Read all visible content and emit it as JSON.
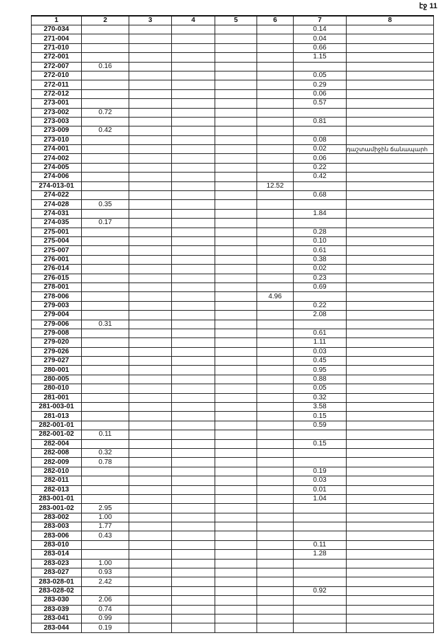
{
  "page_label": "էջ 11",
  "headers": [
    "1",
    "2",
    "3",
    "4",
    "5",
    "6",
    "7",
    "8"
  ],
  "rows": [
    [
      "270-034",
      "",
      "",
      "",
      "",
      "",
      "0.14",
      ""
    ],
    [
      "271-004",
      "",
      "",
      "",
      "",
      "",
      "0.04",
      ""
    ],
    [
      "271-010",
      "",
      "",
      "",
      "",
      "",
      "0.66",
      ""
    ],
    [
      "272-001",
      "",
      "",
      "",
      "",
      "",
      "1.15",
      ""
    ],
    [
      "272-007",
      "0.16",
      "",
      "",
      "",
      "",
      "",
      ""
    ],
    [
      "272-010",
      "",
      "",
      "",
      "",
      "",
      "0.05",
      ""
    ],
    [
      "272-011",
      "",
      "",
      "",
      "",
      "",
      "0.29",
      ""
    ],
    [
      "272-012",
      "",
      "",
      "",
      "",
      "",
      "0.06",
      ""
    ],
    [
      "273-001",
      "",
      "",
      "",
      "",
      "",
      "0.57",
      ""
    ],
    [
      "273-002",
      "0.72",
      "",
      "",
      "",
      "",
      "",
      ""
    ],
    [
      "273-003",
      "",
      "",
      "",
      "",
      "",
      "0.81",
      ""
    ],
    [
      "273-009",
      "0.42",
      "",
      "",
      "",
      "",
      "",
      ""
    ],
    [
      "273-010",
      "",
      "",
      "",
      "",
      "",
      "0.08",
      ""
    ],
    [
      "274-001",
      "",
      "",
      "",
      "",
      "",
      "0.02",
      "դաշտամիջին ճանապարհ"
    ],
    [
      "274-002",
      "",
      "",
      "",
      "",
      "",
      "0.06",
      ""
    ],
    [
      "274-005",
      "",
      "",
      "",
      "",
      "",
      "0.22",
      ""
    ],
    [
      "274-006",
      "",
      "",
      "",
      "",
      "",
      "0.42",
      ""
    ],
    [
      "274-013-01",
      "",
      "",
      "",
      "",
      "12.52",
      "",
      ""
    ],
    [
      "274-022",
      "",
      "",
      "",
      "",
      "",
      "0.68",
      ""
    ],
    [
      "274-028",
      "0.35",
      "",
      "",
      "",
      "",
      "",
      ""
    ],
    [
      "274-031",
      "",
      "",
      "",
      "",
      "",
      "1.84",
      ""
    ],
    [
      "274-035",
      "0.17",
      "",
      "",
      "",
      "",
      "",
      ""
    ],
    [
      "275-001",
      "",
      "",
      "",
      "",
      "",
      "0.28",
      ""
    ],
    [
      "275-004",
      "",
      "",
      "",
      "",
      "",
      "0.10",
      ""
    ],
    [
      "275-007",
      "",
      "",
      "",
      "",
      "",
      "0.61",
      ""
    ],
    [
      "276-001",
      "",
      "",
      "",
      "",
      "",
      "0.38",
      ""
    ],
    [
      "276-014",
      "",
      "",
      "",
      "",
      "",
      "0.02",
      ""
    ],
    [
      "276-015",
      "",
      "",
      "",
      "",
      "",
      "0.23",
      ""
    ],
    [
      "278-001",
      "",
      "",
      "",
      "",
      "",
      "0.69",
      ""
    ],
    [
      "278-006",
      "",
      "",
      "",
      "",
      "4.96",
      "",
      ""
    ],
    [
      "279-003",
      "",
      "",
      "",
      "",
      "",
      "0.22",
      ""
    ],
    [
      "279-004",
      "",
      "",
      "",
      "",
      "",
      "2.08",
      ""
    ],
    [
      "279-006",
      "0.31",
      "",
      "",
      "",
      "",
      "",
      ""
    ],
    [
      "279-008",
      "",
      "",
      "",
      "",
      "",
      "0.61",
      ""
    ],
    [
      "279-020",
      "",
      "",
      "",
      "",
      "",
      "1.11",
      ""
    ],
    [
      "279-026",
      "",
      "",
      "",
      "",
      "",
      "0.03",
      ""
    ],
    [
      "279-027",
      "",
      "",
      "",
      "",
      "",
      "0.45",
      ""
    ],
    [
      "280-001",
      "",
      "",
      "",
      "",
      "",
      "0.95",
      ""
    ],
    [
      "280-005",
      "",
      "",
      "",
      "",
      "",
      "0.88",
      ""
    ],
    [
      "280-010",
      "",
      "",
      "",
      "",
      "",
      "0.05",
      ""
    ],
    [
      "281-001",
      "",
      "",
      "",
      "",
      "",
      "0.32",
      ""
    ],
    [
      "281-003-01",
      "",
      "",
      "",
      "",
      "",
      "3.58",
      ""
    ],
    [
      "281-013",
      "",
      "",
      "",
      "",
      "",
      "0.15",
      ""
    ],
    [
      "282-001-01",
      "",
      "",
      "",
      "",
      "",
      "0.59",
      ""
    ],
    [
      "282-001-02",
      "0.11",
      "",
      "",
      "",
      "",
      "",
      ""
    ],
    [
      "282-004",
      "",
      "",
      "",
      "",
      "",
      "0.15",
      ""
    ],
    [
      "282-008",
      "0.32",
      "",
      "",
      "",
      "",
      "",
      ""
    ],
    [
      "282-009",
      "0.78",
      "",
      "",
      "",
      "",
      "",
      ""
    ],
    [
      "282-010",
      "",
      "",
      "",
      "",
      "",
      "0.19",
      ""
    ],
    [
      "282-011",
      "",
      "",
      "",
      "",
      "",
      "0.03",
      ""
    ],
    [
      "282-013",
      "",
      "",
      "",
      "",
      "",
      "0.01",
      ""
    ],
    [
      "283-001-01",
      "",
      "",
      "",
      "",
      "",
      "1.04",
      ""
    ],
    [
      "283-001-02",
      "2.95",
      "",
      "",
      "",
      "",
      "",
      ""
    ],
    [
      "283-002",
      "1.00",
      "",
      "",
      "",
      "",
      "",
      ""
    ],
    [
      "283-003",
      "1.77",
      "",
      "",
      "",
      "",
      "",
      ""
    ],
    [
      "283-006",
      "0.43",
      "",
      "",
      "",
      "",
      "",
      ""
    ],
    [
      "283-010",
      "",
      "",
      "",
      "",
      "",
      "0.11",
      ""
    ],
    [
      "283-014",
      "",
      "",
      "",
      "",
      "",
      "1.28",
      ""
    ],
    [
      "283-023",
      "1.00",
      "",
      "",
      "",
      "",
      "",
      ""
    ],
    [
      "283-027",
      "0.93",
      "",
      "",
      "",
      "",
      "",
      ""
    ],
    [
      "283-028-01",
      "2.42",
      "",
      "",
      "",
      "",
      "",
      ""
    ],
    [
      "283-028-02",
      "",
      "",
      "",
      "",
      "",
      "0.92",
      ""
    ],
    [
      "283-030",
      "2.06",
      "",
      "",
      "",
      "",
      "",
      ""
    ],
    [
      "283-039",
      "0.74",
      "",
      "",
      "",
      "",
      "",
      ""
    ],
    [
      "283-041",
      "0.99",
      "",
      "",
      "",
      "",
      "",
      ""
    ],
    [
      "283-044",
      "0.19",
      "",
      "",
      "",
      "",
      "",
      ""
    ]
  ]
}
